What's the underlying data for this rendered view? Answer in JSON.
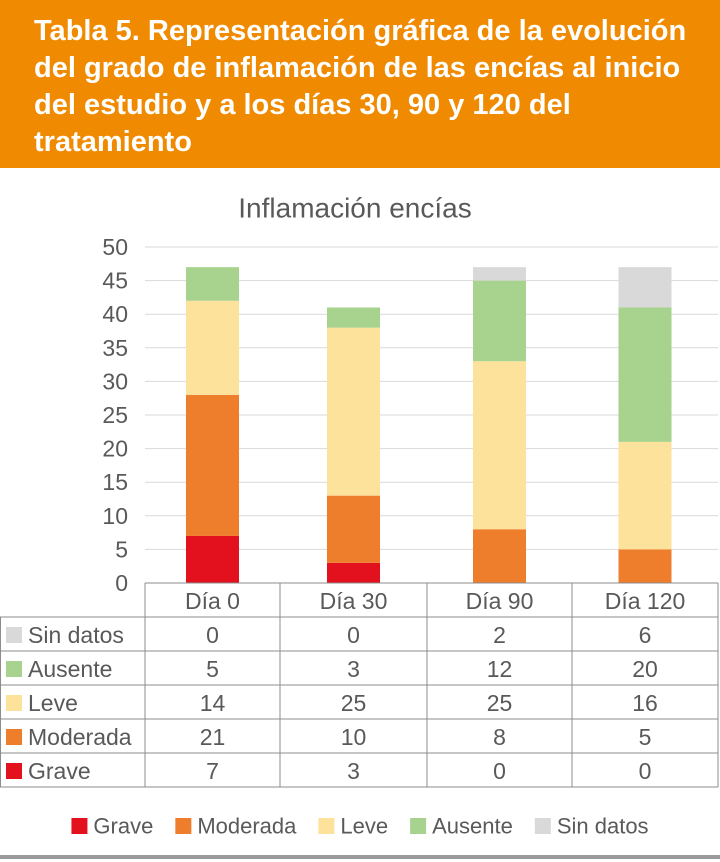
{
  "header": {
    "title": "Tabla 5. Representación gráfica de la evolución del grado de inflamación de las encías al inicio del estudio y a los días 30, 90 y 120 del tratamiento"
  },
  "chart_data": {
    "type": "bar",
    "stacked": true,
    "title": "Inflamación encías",
    "categories": [
      "Día 0",
      "Día 30",
      "Día 90",
      "Día 120"
    ],
    "ylim": [
      0,
      50
    ],
    "yticks": [
      0,
      5,
      10,
      15,
      20,
      25,
      30,
      35,
      40,
      45,
      50
    ],
    "series": [
      {
        "name": "Grave",
        "values": [
          7,
          3,
          0,
          0
        ],
        "color": "#e3111e"
      },
      {
        "name": "Moderada",
        "values": [
          21,
          10,
          8,
          5
        ],
        "color": "#ee7d2c"
      },
      {
        "name": "Leve",
        "values": [
          14,
          25,
          25,
          16
        ],
        "color": "#fde29b"
      },
      {
        "name": "Ausente",
        "values": [
          5,
          3,
          12,
          20
        ],
        "color": "#a7d38e"
      },
      {
        "name": "Sin datos",
        "values": [
          0,
          0,
          2,
          6
        ],
        "color": "#d9d9d9"
      }
    ],
    "legend_position": "bottom",
    "data_table": true
  }
}
